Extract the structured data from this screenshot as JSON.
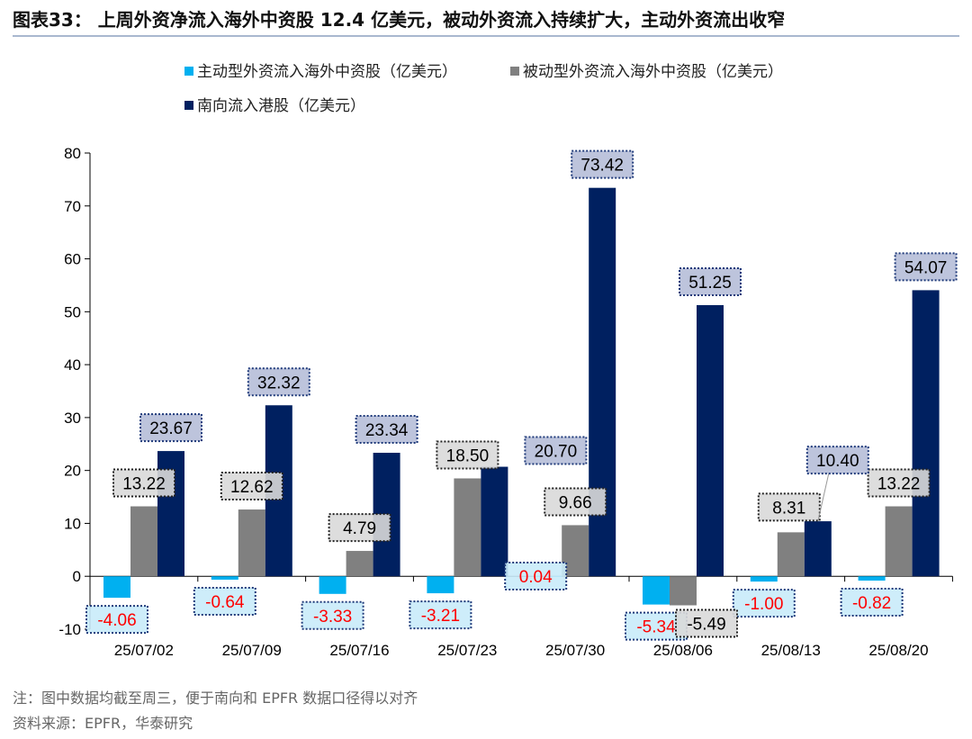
{
  "chart_data": {
    "type": "bar",
    "title": "图表33： 上周外资净流入海外中资股 12.4 亿美元，被动外资流入持续扩大，主动外资流出收窄",
    "categories": [
      "25/07/02",
      "25/07/09",
      "25/07/16",
      "25/07/23",
      "25/07/30",
      "25/08/06",
      "25/08/13",
      "25/08/20"
    ],
    "series": [
      {
        "name": "主动型外资流入海外中资股（亿美元）",
        "color": "#00B0F0",
        "values": [
          -4.06,
          -0.64,
          -3.33,
          -3.21,
          0.04,
          -5.34,
          -1.0,
          -0.82
        ]
      },
      {
        "name": "被动型外资流入海外中资股（亿美元）",
        "color": "#808080",
        "values": [
          13.22,
          12.62,
          4.79,
          18.5,
          9.66,
          -5.49,
          8.31,
          13.22
        ]
      },
      {
        "name": "南向流入港股（亿美元）",
        "color": "#002060",
        "values": [
          23.67,
          32.32,
          23.34,
          20.7,
          73.42,
          51.25,
          10.4,
          54.07
        ]
      }
    ],
    "ylim": [
      -10,
      80
    ],
    "yticks": [
      -10,
      0,
      10,
      20,
      30,
      40,
      50,
      60,
      70,
      80
    ],
    "xlabel": "",
    "ylabel": "",
    "grid": false,
    "legend": "top",
    "data_labels": true
  },
  "notes": {
    "note": "注：图中数据均截至周三，便于南向和 EPFR 数据口径得以对齐",
    "source": "资料来源：EPFR，华泰研究"
  }
}
